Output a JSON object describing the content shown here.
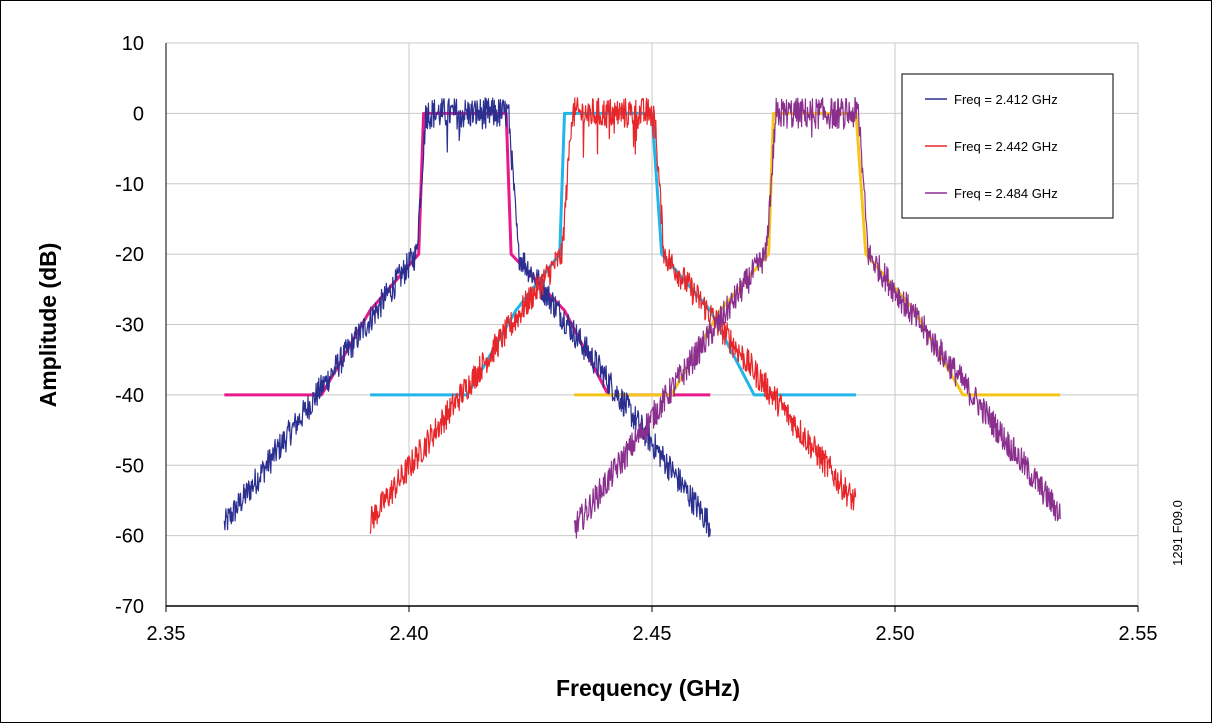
{
  "chart_data": {
    "type": "line",
    "xlabel": "Frequency (GHz)",
    "ylabel": "Amplitude (dB)",
    "xlim": [
      2.35,
      2.55
    ],
    "ylim": [
      -70,
      10
    ],
    "xticks": [
      "2.35",
      "2.40",
      "2.45",
      "2.50",
      "2.55"
    ],
    "yticks": [
      "10",
      "0",
      "-10",
      "-20",
      "-30",
      "-40",
      "-50",
      "-60",
      "-70"
    ],
    "grid": true,
    "legend_position": "top-right",
    "figure_id": "1291 F09.0",
    "measured_series": [
      {
        "name": "Freq = 2.412 GHz",
        "color": "#2b2f8f",
        "center": 2.412,
        "x_range": [
          2.362,
          2.462
        ],
        "end_levels": [
          -58.5,
          -58.5
        ]
      },
      {
        "name": "Freq = 2.442 GHz",
        "color": "#e8262a",
        "center": 2.442,
        "x_range": [
          2.392,
          2.492
        ],
        "end_levels": [
          -58,
          -55.5
        ]
      },
      {
        "name": "Freq = 2.484 GHz",
        "color": "#8b2f8f",
        "center": 2.484,
        "x_range": [
          2.434,
          2.534
        ],
        "end_levels": [
          -59,
          -57
        ]
      }
    ],
    "mask_series": [
      {
        "color": "#e8198b",
        "x": [
          2.362,
          2.382,
          2.392,
          2.402,
          2.403,
          2.42,
          2.421,
          2.432,
          2.441,
          2.462
        ],
        "y": [
          -40,
          -40,
          -28,
          -20,
          0,
          0,
          -20,
          -28,
          -40,
          -40
        ]
      },
      {
        "color": "#22b5e8",
        "x": [
          2.392,
          2.412,
          2.422,
          2.431,
          2.432,
          2.45,
          2.452,
          2.462,
          2.471,
          2.492
        ],
        "y": [
          -40,
          -40,
          -28,
          -20,
          0,
          0,
          -20,
          -28,
          -40,
          -40
        ]
      },
      {
        "color": "#f5c518",
        "x": [
          2.434,
          2.454,
          2.464,
          2.474,
          2.475,
          2.492,
          2.494,
          2.504,
          2.514,
          2.534
        ],
        "y": [
          -40,
          -40,
          -28,
          -20,
          0,
          0,
          -20,
          -28,
          -40,
          -40
        ]
      }
    ]
  }
}
